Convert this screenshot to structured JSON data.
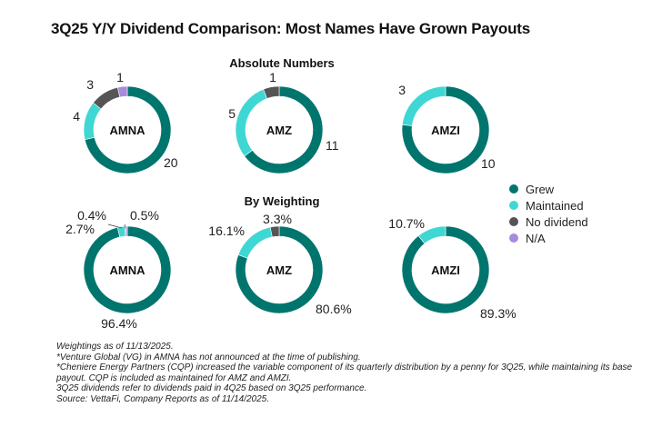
{
  "title": "3Q25 Y/Y Dividend Comparison: Most Names Have Grown Payouts",
  "colors": {
    "Grew": "#00756e",
    "Maintained": "#3fd7d4",
    "No dividend": "#555555",
    "N/A": "#a78bdc"
  },
  "chart_data": [
    {
      "type": "pie",
      "section": "Absolute Numbers",
      "charts": [
        {
          "label": "AMNA",
          "slices": [
            {
              "category": "Grew",
              "value": 20,
              "text": "20"
            },
            {
              "category": "Maintained",
              "value": 4,
              "text": "4"
            },
            {
              "category": "No dividend",
              "value": 3,
              "text": "3"
            },
            {
              "category": "N/A",
              "value": 1,
              "text": "1"
            }
          ]
        },
        {
          "label": "AMZ",
          "slices": [
            {
              "category": "Grew",
              "value": 11,
              "text": "11"
            },
            {
              "category": "Maintained",
              "value": 5,
              "text": "5"
            },
            {
              "category": "No dividend",
              "value": 1,
              "text": "1"
            }
          ]
        },
        {
          "label": "AMZI",
          "slices": [
            {
              "category": "Grew",
              "value": 10,
              "text": "10"
            },
            {
              "category": "Maintained",
              "value": 3,
              "text": "3"
            }
          ]
        }
      ]
    },
    {
      "type": "pie",
      "section": "By Weighting",
      "charts": [
        {
          "label": "AMNA",
          "slices": [
            {
              "category": "Grew",
              "value": 96.4,
              "text": "96.4%"
            },
            {
              "category": "Maintained",
              "value": 2.7,
              "text": "2.7%"
            },
            {
              "category": "No dividend",
              "value": 0.4,
              "text": "0.4%"
            },
            {
              "category": "N/A",
              "value": 0.5,
              "text": "0.5%"
            }
          ]
        },
        {
          "label": "AMZ",
          "slices": [
            {
              "category": "Grew",
              "value": 80.6,
              "text": "80.6%"
            },
            {
              "category": "Maintained",
              "value": 16.1,
              "text": "16.1%"
            },
            {
              "category": "No dividend",
              "value": 3.3,
              "text": "3.3%"
            }
          ]
        },
        {
          "label": "AMZI",
          "slices": [
            {
              "category": "Grew",
              "value": 89.3,
              "text": "89.3%"
            },
            {
              "category": "Maintained",
              "value": 10.7,
              "text": "10.7%"
            }
          ]
        }
      ]
    }
  ],
  "legend": {
    "placement": "right",
    "items": [
      "Grew",
      "Maintained",
      "No dividend",
      "N/A"
    ]
  },
  "footnotes": [
    "Weightings as of 11/13/2025.",
    "*Venture Global (VG) in AMNA has not announced at the time of publishing.",
    "*Cheniere Energy Partners (CQP) increased the variable component of its quarterly distribution by a penny for 3Q25, while maintaining its base payout. CQP is included as maintained for AMZ and AMZI.",
    "3Q25 dividends refer to dividends paid in 4Q25 based on 3Q25 performance.",
    "Source: VettaFi, Company Reports as of 11/14/2025."
  ]
}
